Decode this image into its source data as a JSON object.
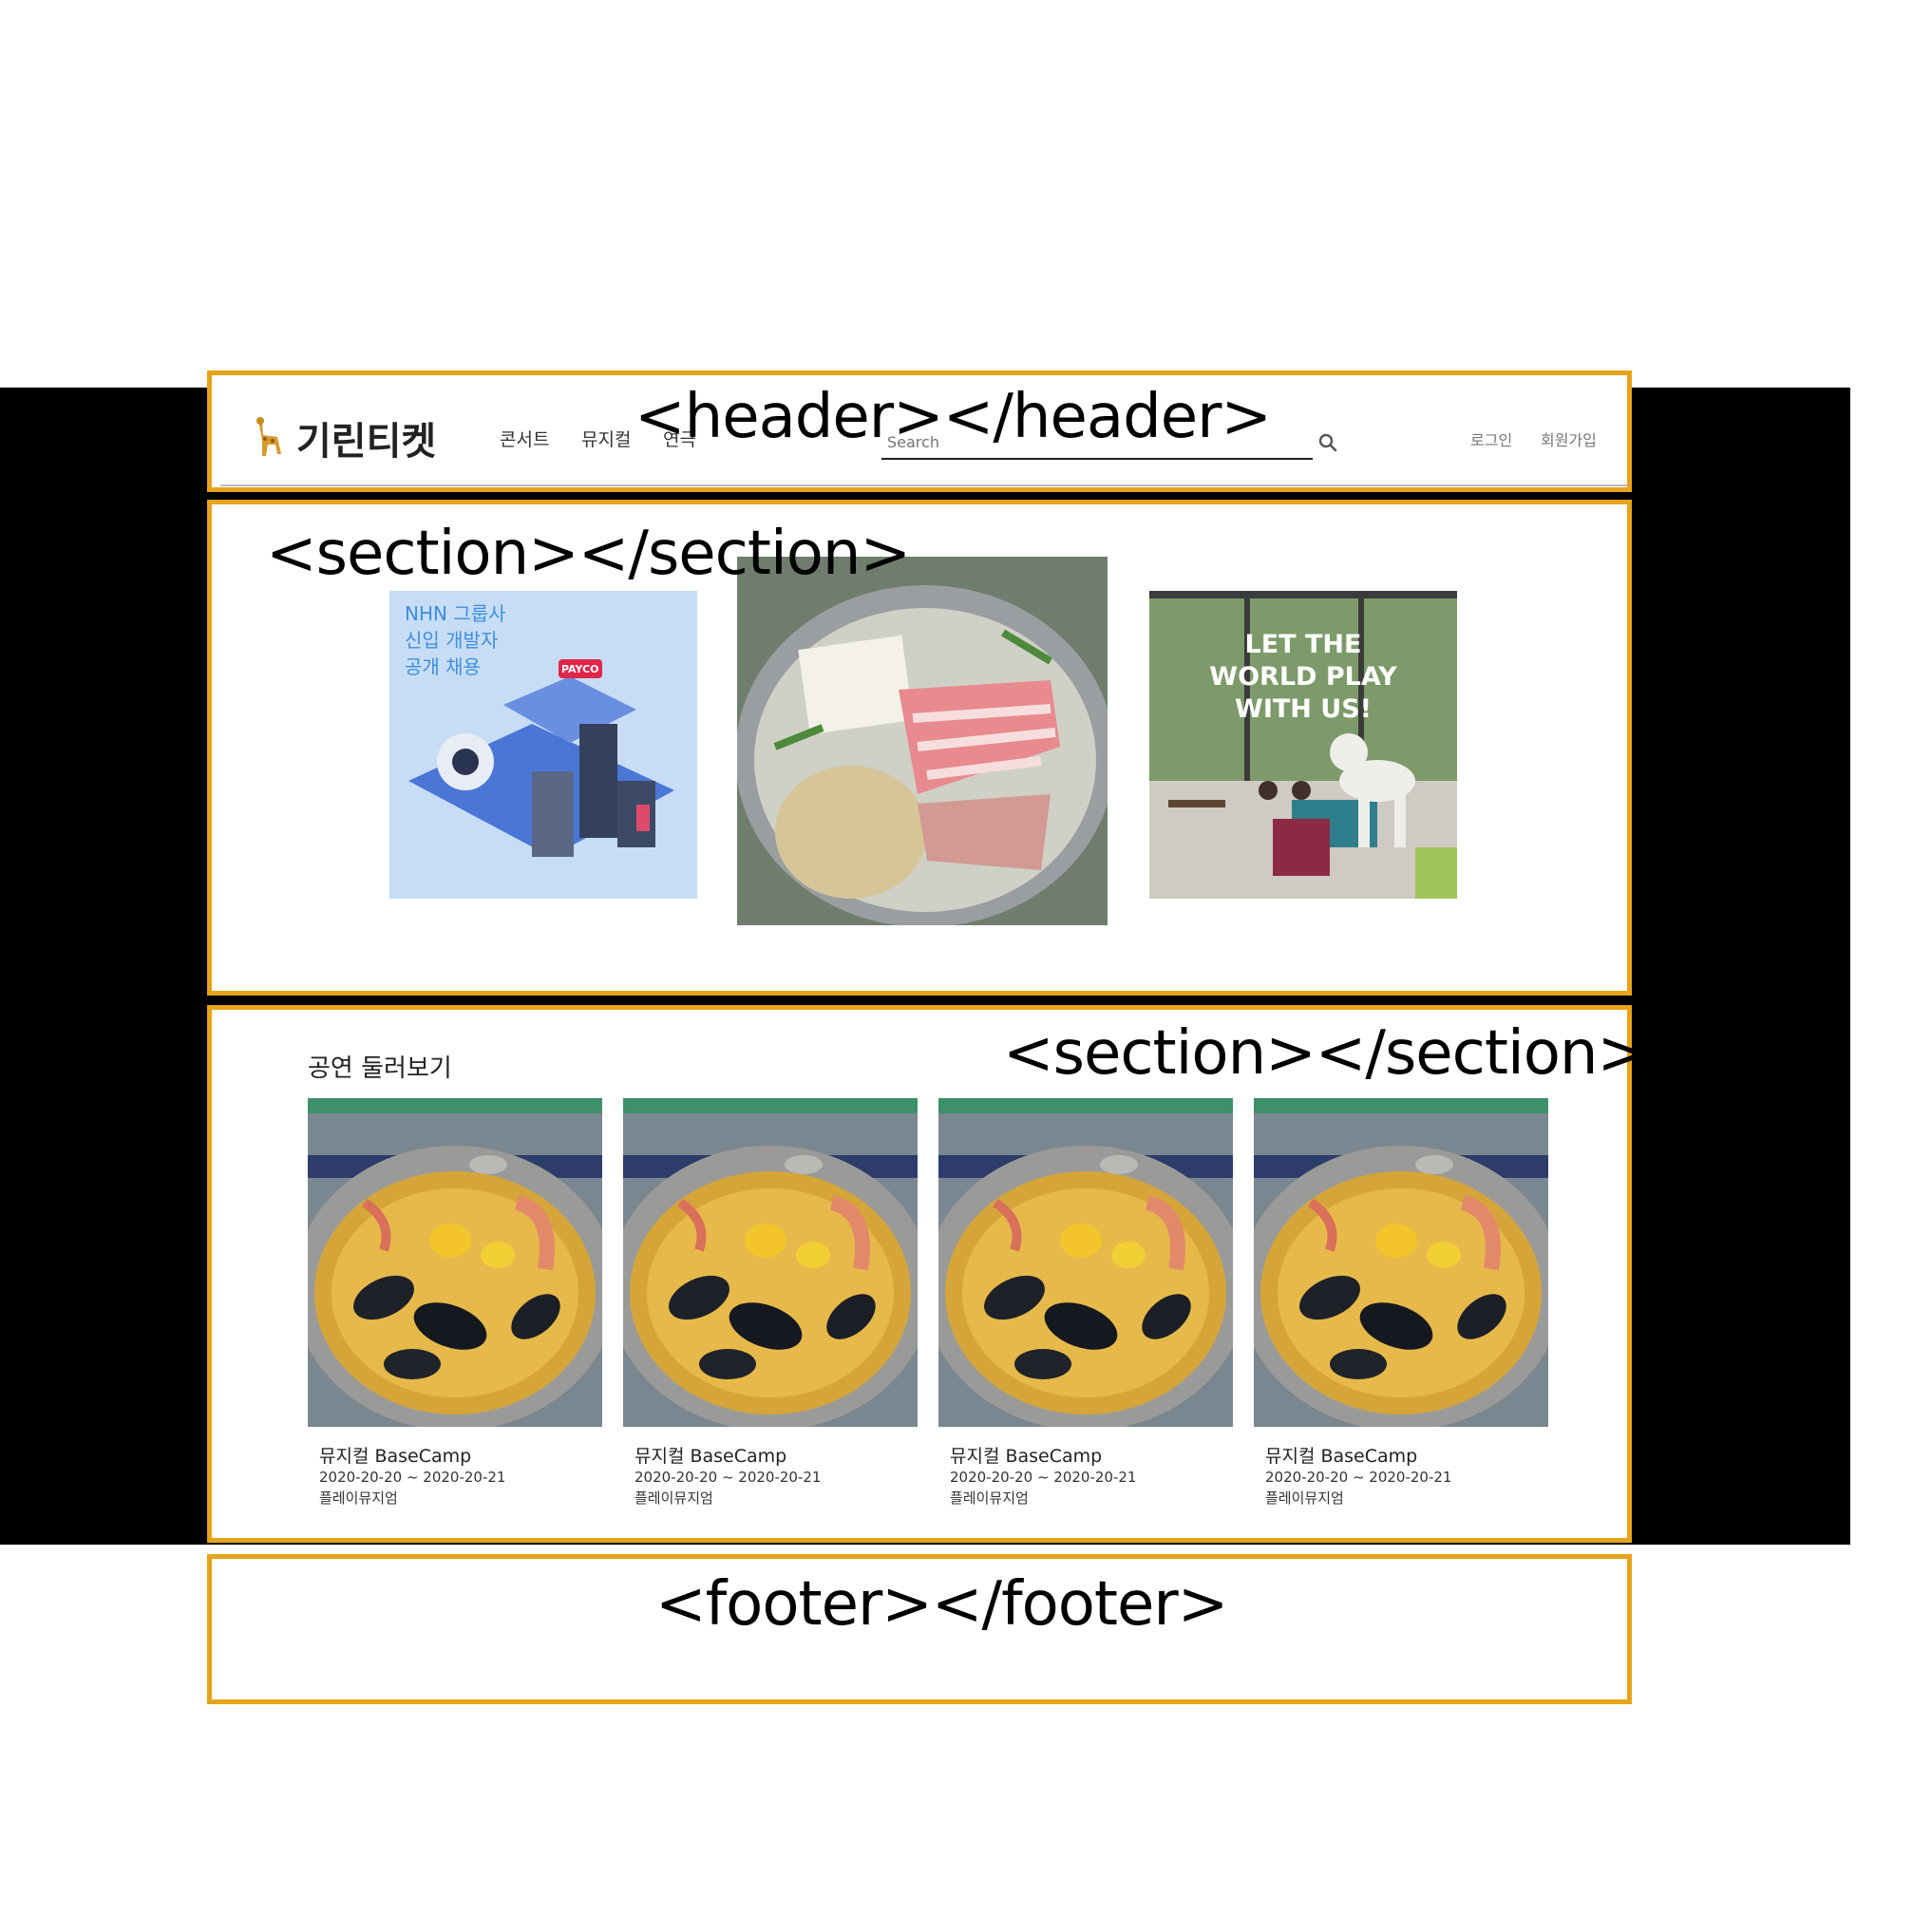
{
  "header": {
    "logo_text": "기린티켓",
    "nav": [
      "콘서트",
      "뮤지컬",
      "연극"
    ],
    "search_placeholder": "Search",
    "login": "로그인",
    "signup": "회원가입"
  },
  "banner": {
    "nhn_lines": [
      "NHN 그룹사",
      "신입 개발자",
      "공개 채용"
    ],
    "payco_label": "PAYCO",
    "play_lines": [
      "LET THE",
      "WORLD PLAY",
      "WITH US!"
    ]
  },
  "shows": {
    "title": "공연 둘러보기",
    "cards": [
      {
        "title": "뮤지컬 BaseCamp",
        "dates": "2020-20-20 ~ 2020-20-21",
        "venue": "플레이뮤지엄"
      },
      {
        "title": "뮤지컬 BaseCamp",
        "dates": "2020-20-20 ~ 2020-20-21",
        "venue": "플레이뮤지엄"
      },
      {
        "title": "뮤지컬 BaseCamp",
        "dates": "2020-20-20 ~ 2020-20-21",
        "venue": "플레이뮤지엄"
      },
      {
        "title": "뮤지컬 BaseCamp",
        "dates": "2020-20-20 ~ 2020-20-21",
        "venue": "플레이뮤지엄"
      }
    ]
  },
  "annotations": {
    "header": "<header></header>",
    "section1": "<section></section>",
    "section2": "<section></section>",
    "footer": "<footer></footer>"
  },
  "colors": {
    "outline": "#e6a31b",
    "background_band": "#000000"
  }
}
